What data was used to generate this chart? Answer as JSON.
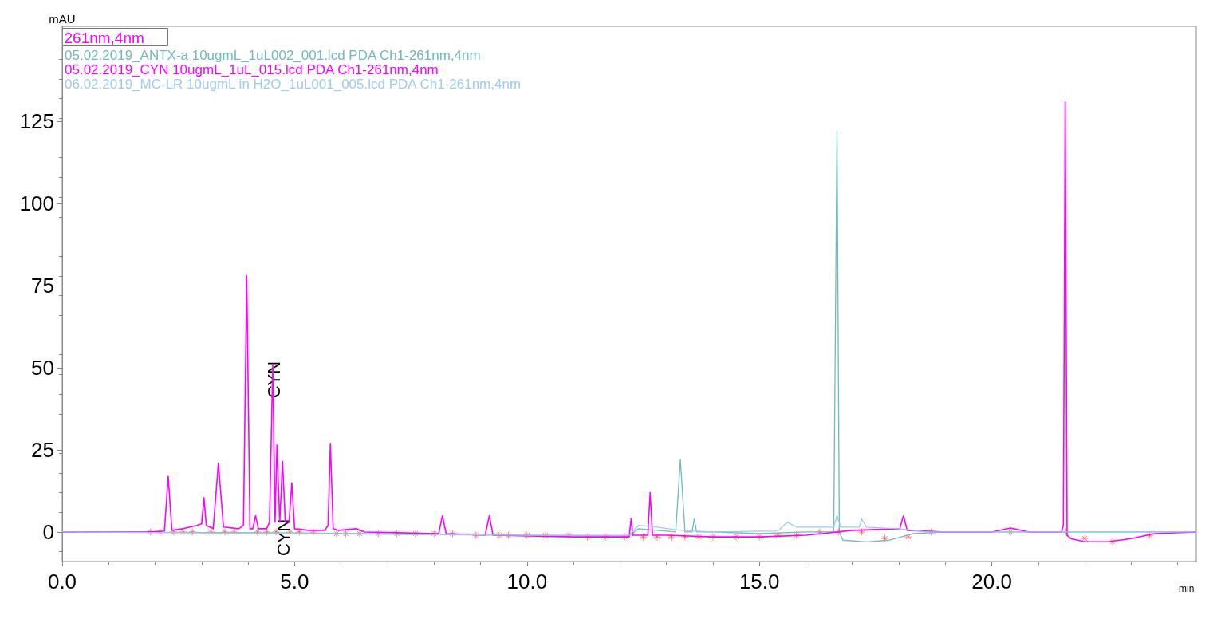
{
  "chart_data": {
    "type": "line",
    "xlabel": "min",
    "ylabel": "mAU",
    "xlim": [
      0,
      24.4
    ],
    "ylim": [
      -9,
      154
    ],
    "xticks": [
      {
        "value": 0,
        "label": "0.0"
      },
      {
        "value": 5,
        "label": "5.0"
      },
      {
        "value": 10,
        "label": "10.0"
      },
      {
        "value": 15,
        "label": "15.0"
      },
      {
        "value": 20,
        "label": "20.0"
      }
    ],
    "yticks": [
      0,
      25,
      50,
      75,
      100,
      125
    ],
    "grid": false,
    "legend": "top left",
    "marker": "none",
    "line_style": "solid",
    "annotations": [
      "261nm,4nm",
      {
        "text": "CYN",
        "x": 4.53,
        "y": 52
      },
      {
        "text": "CYN",
        "x": 4.74,
        "y": 4
      }
    ],
    "series": [
      {
        "name": "05.02.2019_ANTX-a 10ugmL_1uL002_001.lcd PDA Ch1-261nm,4nm",
        "color": "#6fbaba",
        "x": [
          0,
          5,
          10,
          12.2,
          12.4,
          12.8,
          13.2,
          13.3,
          13.4,
          13.55,
          13.6,
          13.65,
          14,
          15,
          16,
          16.6,
          16.67,
          16.72,
          16.8,
          17.3,
          17.8,
          18.3,
          19,
          24.4
        ],
        "values": [
          0,
          -0.3,
          -1,
          -1.2,
          1,
          0.5,
          0,
          22,
          0,
          0,
          4,
          0,
          0,
          -0.5,
          0,
          0,
          122,
          0,
          -2.5,
          -3,
          -2.5,
          -0.5,
          0,
          0
        ]
      },
      {
        "name": "05.02.2019_CYN 10ugmL_1uL_015.lcd PDA Ch1-261nm,4nm",
        "color": "#ff00ff",
        "x": [
          0,
          1.8,
          2.2,
          2.28,
          2.36,
          2.6,
          2.9,
          3.0,
          3.05,
          3.1,
          3.25,
          3.36,
          3.47,
          3.8,
          3.9,
          3.97,
          4.04,
          4.1,
          4.16,
          4.22,
          4.4,
          4.46,
          4.53,
          4.58,
          4.62,
          4.68,
          4.74,
          4.8,
          4.88,
          4.94,
          5.0,
          5.3,
          5.65,
          5.72,
          5.77,
          5.83,
          5.95,
          6.33,
          6.5,
          8.1,
          8.18,
          8.26,
          9.1,
          9.19,
          9.27,
          11,
          12.2,
          12.24,
          12.28,
          12.6,
          12.65,
          12.7,
          13,
          14,
          15,
          16,
          17,
          18.02,
          18.1,
          18.18,
          19,
          20,
          20.4,
          20.8,
          21.5,
          21.54,
          21.58,
          21.62,
          21.7,
          22.0,
          22.5,
          23,
          23.5,
          24.4
        ],
        "values": [
          0,
          0,
          0.3,
          17,
          0.5,
          1,
          2,
          2.5,
          10.5,
          2,
          1,
          21,
          1.5,
          1,
          2,
          78,
          1,
          1,
          5,
          1,
          1,
          3,
          51,
          3,
          26.5,
          3,
          21.5,
          3,
          3,
          15,
          1,
          0.5,
          0.5,
          2,
          27,
          1,
          0.5,
          1,
          0,
          -0.5,
          5,
          -0.5,
          -1,
          5,
          -1,
          -1.5,
          -1.5,
          4,
          -1,
          -1,
          12,
          -1,
          -1,
          -1.5,
          -1.5,
          -1,
          0.5,
          1,
          5,
          0.5,
          0,
          0,
          1.2,
          0,
          0,
          2,
          131,
          -1,
          -2,
          -3,
          -3,
          -2,
          -0.5,
          0
        ]
      },
      {
        "name": "06.02.2019_MC-LR 10ugmL in H2O_1uL001_005.lcd PDA Ch1-261nm,4nm",
        "color": "#9ecbf0",
        "x": [
          0,
          10,
          12.2,
          12.4,
          12.8,
          13.3,
          14,
          15.4,
          15.6,
          15.8,
          16.6,
          16.67,
          16.75,
          17.15,
          17.2,
          17.3,
          18,
          18.6,
          24.4
        ],
        "values": [
          0,
          -1,
          -1,
          2,
          1.5,
          0.5,
          0,
          0.3,
          3,
          1.5,
          1.5,
          5,
          1.5,
          1.5,
          4,
          1.5,
          1,
          0,
          0
        ]
      },
      {
        "type": "scatter",
        "color": "#ff4040",
        "marker": "cross",
        "x": [
          1.9,
          2.1,
          2.4,
          2.6,
          2.8,
          3.2,
          3.5,
          3.7,
          4.2,
          4.4,
          4.6,
          4.9,
          5.1,
          5.4,
          5.9,
          6.1,
          6.4,
          6.8,
          7.2,
          7.6,
          8.0,
          8.4,
          8.9,
          9.4,
          9.6,
          10.0,
          10.4,
          10.9,
          11.3,
          11.7,
          12.1,
          12.5,
          12.8,
          13.1,
          13.4,
          13.7,
          14.0,
          14.5,
          15.0,
          15.4,
          15.8,
          16.3,
          16.7,
          17.2,
          17.7,
          18.2,
          18.7,
          20.4,
          21.6,
          22.0,
          22.6,
          23.4
        ],
        "values": [
          0,
          0,
          0,
          0,
          0,
          0,
          0,
          0,
          0,
          0,
          0,
          0,
          0,
          0,
          -0.5,
          -0.5,
          -0.5,
          -0.5,
          -0.5,
          -0.5,
          -0.5,
          -0.5,
          -1,
          -1,
          -1,
          -1,
          -1,
          -1,
          -1.5,
          -1.5,
          -1.5,
          -1.5,
          -1.5,
          -1.5,
          -1.5,
          -1.5,
          -1.5,
          -1.5,
          -1.5,
          -1,
          -1,
          0,
          0,
          0,
          -2,
          -1.5,
          0,
          0,
          0,
          -2,
          -3,
          -1
        ]
      }
    ]
  }
}
